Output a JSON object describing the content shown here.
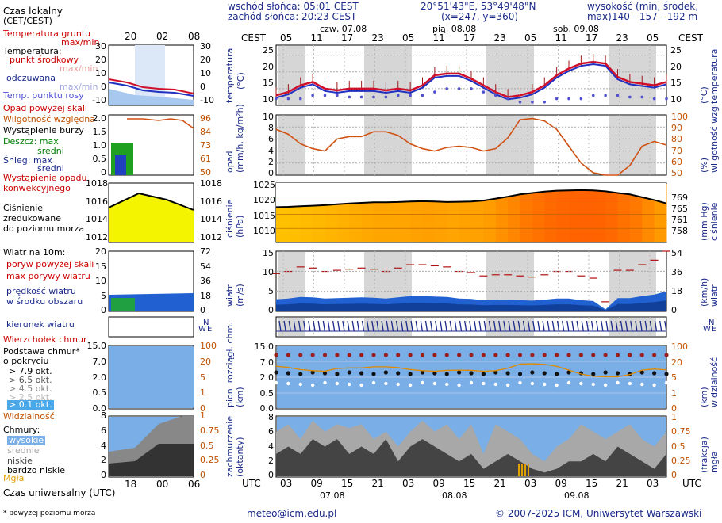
{
  "header": {
    "sunrise": "wschód słońca: 05:01 CEST",
    "sunset": "zachód słońca: 20:23 CEST",
    "coords": "20°51'43\"E, 53°49'48\"N",
    "grid": "(x=247, y=360)",
    "height_label": "wysokość (min, środek, max)",
    "height_values": "140 - 157 - 192 m",
    "tz_left": "CEST",
    "tz_right": "CEST",
    "top_hours": [
      "05",
      "11",
      "17",
      "23",
      "05",
      "11",
      "17",
      "23",
      "05",
      "11",
      "17",
      "23",
      "05"
    ],
    "days_top": [
      "czw, 07.08",
      "pią, 08.08",
      "sob, 09.08"
    ],
    "utc_left": "UTC",
    "utc_right": "UTC",
    "bottom_hours": [
      "03",
      "09",
      "15",
      "21",
      "03",
      "09",
      "15",
      "21",
      "03",
      "09",
      "15",
      "21",
      "03"
    ],
    "days_bottom": [
      "07.08",
      "08.08",
      "09.08"
    ]
  },
  "legend": {
    "local_time": "Czas lokalny",
    "local_time2": "(CET/CEST)",
    "local_ticks": [
      "20",
      "02",
      "08"
    ],
    "ground_temp": "Temperatura gruntu",
    "maxmin1": "max/min",
    "temperature": "Temperatura:",
    "mid_point": "punkt środkowy",
    "maxmin2": "max/min",
    "felt": "odczuwana",
    "maxmin3": "max/min",
    "dew_point": "Temp. punktu rosy",
    "precip_above": "Opad powyżej skali",
    "humidity": "Wilgotność względna",
    "storm": "Wystąpienie burzy",
    "rain_max": "Deszcz: max",
    "rain_mid": "średni",
    "snow_max": "Śnieg:   max",
    "snow_mid": "średni",
    "conv": "Wystąpienie opadu",
    "conv2": "konwekcyjnego",
    "pressure1": "Ciśnienie",
    "pressure2": "zredukowane",
    "pressure3": "do poziomu morza",
    "wind": "Wiatr na 10m:",
    "gust_above": "poryw powyżej skali",
    "gust_max": "max porywy wiatru",
    "wind_mean1": "prędkość wiatru",
    "wind_mean2": "w środku obszaru",
    "wind_dir": "kierunek wiatru",
    "cloud_top": "Wierzchołek chmur",
    "cloud_base1": "Podstawa chmur*",
    "cloud_base2": "o pokryciu",
    "okt79": "> 7.9 okt.",
    "okt65": "> 6.5 okt.",
    "okt45": "> 4.5 okt.",
    "okt25": "> 2.5 okt.",
    "okt01": "> 0.1 okt.",
    "visibility": "Widzialność",
    "clouds": "Chmury:",
    "high": "wysokie",
    "mid": "średnie",
    "low": "niskie",
    "very_low": "bardzo niskie",
    "fog": "Mgła",
    "utc_label": "Czas uniwersalny (UTC)",
    "utc_ticks": [
      "18",
      "00",
      "06"
    ],
    "footnote": "* powyżej poziomu morza"
  },
  "legend_axes": {
    "temp_left": [
      "30",
      "20",
      "10",
      "0",
      "-10"
    ],
    "temp_right": [
      "30",
      "20",
      "10",
      "0",
      "-10"
    ],
    "precip_left": [
      "2.0",
      "1.5",
      "1.0",
      "0.5",
      "0"
    ],
    "precip_right": [
      "96",
      "84",
      "73",
      "61",
      "50"
    ],
    "press_left": [
      "1018",
      "1016",
      "1014",
      "1012"
    ],
    "press_right": [
      "1018",
      "1016",
      "1014",
      "1012"
    ],
    "wind_left": [
      "20",
      "15",
      "10",
      "5",
      "0"
    ],
    "wind_right": [
      "72",
      "54",
      "36",
      "18",
      "0"
    ],
    "cb_left": [
      "15.0",
      "7.0",
      "2.0",
      "0.5",
      "0.0"
    ],
    "cb_right": [
      "100",
      "20",
      "5",
      "1",
      "0"
    ],
    "cl_left": [
      "8",
      "6",
      "4",
      "2",
      "0"
    ],
    "cl_right": [
      "1",
      "0.75",
      "0.5",
      "0.25",
      "0"
    ]
  },
  "panels": {
    "temp_axis_left": "temperatura\n(°C)",
    "temp_axis_right": "(°C)\ntemperatura",
    "precip_axis_left": "opad\n(mm/h, kg/m²h)",
    "precip_axis_right": "(%)\nwilgotność wzgl.",
    "press_axis_left": "ciśnienie\n(hPa)",
    "press_axis_right": "(mm Hg)\nciśnienie",
    "wind_axis_left": "wiatr\n(m/s)",
    "wind_axis_right": "(km/h)\nwiatr",
    "cb_axis_left": "pion. rozciągł. chm.\n(km)",
    "cb_axis_right": "(km)\nwidzialność",
    "cl_axis_left": "zachmurzenie\n(oktanty)",
    "cl_axis_right": "(frakcja)\nmgła",
    "compass_n": "N",
    "compass_w": "W",
    "compass_e": "E",
    "compass_s": "S"
  },
  "chart_data": {
    "type": "line",
    "temperature": {
      "y_left": [
        "25",
        "20",
        "15",
        "10"
      ],
      "y_right": [
        "25",
        "20",
        "15",
        "10"
      ],
      "ylim": [
        10,
        28
      ],
      "series": [
        {
          "name": "punkt środkowy",
          "values": [
            13,
            14,
            16,
            17,
            15,
            14.5,
            15,
            15,
            15,
            14.5,
            15,
            14.5,
            16,
            19,
            19.5,
            19.5,
            18,
            16,
            14,
            12.5,
            13,
            14,
            16,
            19,
            21,
            22.5,
            23,
            22.5,
            18.5,
            17,
            16.5,
            16,
            17
          ]
        },
        {
          "name": "Temp. punktu rosy",
          "values": [
            12,
            12,
            12,
            13,
            13,
            13,
            12.5,
            12.5,
            12.5,
            12.5,
            13,
            13,
            13,
            14,
            15,
            15,
            15,
            14,
            13,
            12,
            11,
            11,
            11,
            12,
            12,
            12,
            13,
            13,
            13,
            12.5,
            12.5,
            12,
            12
          ]
        }
      ]
    },
    "precipitation": {
      "y_left": [
        "10",
        "8",
        "6",
        "4",
        "2",
        "0"
      ],
      "y_right": [
        "100",
        "90",
        "80",
        "70",
        "60",
        "50"
      ],
      "humidity_values": [
        88,
        84,
        76,
        72,
        70,
        80,
        82,
        82,
        86,
        86,
        83,
        76,
        72,
        70,
        73,
        74,
        73,
        70,
        72,
        81,
        96,
        97,
        95,
        88,
        74,
        60,
        52,
        50,
        50,
        58,
        74,
        78,
        75
      ]
    },
    "pressure": {
      "y_left": [
        "1025",
        "1020",
        "1015",
        "1010"
      ],
      "y_right": [
        "769",
        "765",
        "761",
        "758"
      ],
      "values": [
        1017.5,
        1017.6,
        1017.8,
        1018,
        1018.2,
        1018.5,
        1018.8,
        1019,
        1019.2,
        1019.2,
        1019.3,
        1019.5,
        1019.6,
        1019.5,
        1019.3,
        1019.4,
        1019.5,
        1019.8,
        1020.5,
        1021.2,
        1022,
        1022.5,
        1023,
        1023.3,
        1023.4,
        1023.5,
        1023.4,
        1023.1,
        1022.5,
        1022,
        1021,
        1020,
        1018.8
      ]
    },
    "wind": {
      "y_left": [
        "15",
        "10",
        "5",
        "0"
      ],
      "y_right": [
        "54",
        "36",
        "18",
        "0"
      ],
      "mean": [
        3,
        3.2,
        3.6,
        3.5,
        3.2,
        3.3,
        3.4,
        3.5,
        3.4,
        3.2,
        3.5,
        3.8,
        3.8,
        3.7,
        3.6,
        3.2,
        3.1,
        2.8,
        2.9,
        2.9,
        2.8,
        2.7,
        2.9,
        3.2,
        3.2,
        2.8,
        2.6,
        0.5,
        3.3,
        3.3,
        3.8,
        4.2,
        5
      ]
    },
    "cloud_base": {
      "y_left": [
        "15.0",
        "7.0",
        "2.0",
        "0.5",
        "0.0"
      ],
      "y_right": [
        "100",
        "20",
        "5",
        "1",
        "0"
      ]
    },
    "clouds": {
      "y_left": [
        "8",
        "6",
        "4",
        "2",
        "0"
      ],
      "y_right": [
        "1",
        "0.75",
        "0.5",
        "0.25",
        "0"
      ]
    }
  },
  "footer": {
    "email": "meteo@icm.edu.pl",
    "copyright": "© 2007-2025 ICM, Uniwersytet Warszawski"
  },
  "colors": {
    "temp": "#d0102a",
    "dew": "#5050d0",
    "humidity": "#d05010",
    "wind": "#2060d0",
    "night": "#d6d6d6",
    "sky": "#7aaee6"
  }
}
